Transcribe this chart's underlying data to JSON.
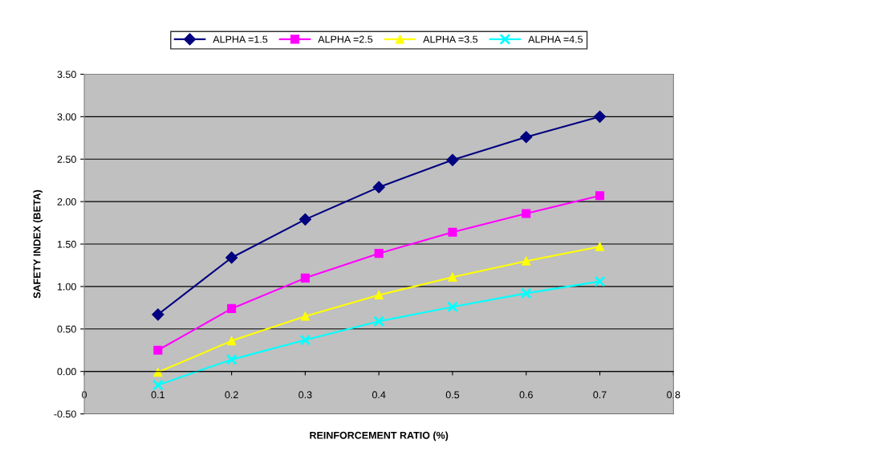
{
  "chart_data": {
    "type": "line",
    "xlabel": "REINFORCEMENT RATIO (%)",
    "ylabel": "SAFETY INDEX (BETA)",
    "x": [
      0.1,
      0.2,
      0.3,
      0.4,
      0.5,
      0.6,
      0.7
    ],
    "series": [
      {
        "name": "ALPHA =1.5",
        "color": "#000080",
        "marker": "diamond",
        "values": [
          0.67,
          1.34,
          1.79,
          2.17,
          2.49,
          2.76,
          3.0
        ]
      },
      {
        "name": "ALPHA =2.5",
        "color": "#ff00ff",
        "marker": "square",
        "values": [
          0.25,
          0.74,
          1.1,
          1.39,
          1.64,
          1.86,
          2.07
        ]
      },
      {
        "name": "ALPHA =3.5",
        "color": "#ffff00",
        "marker": "triangle",
        "values": [
          -0.01,
          0.36,
          0.65,
          0.9,
          1.11,
          1.3,
          1.47
        ]
      },
      {
        "name": "ALPHA =4.5",
        "color": "#00ffff",
        "marker": "cross",
        "values": [
          -0.16,
          0.14,
          0.37,
          0.59,
          0.76,
          0.92,
          1.06
        ]
      }
    ],
    "xlim": [
      0,
      0.8
    ],
    "xticks": [
      {
        "value": 0,
        "label": "0"
      },
      0.1,
      0.2,
      0.3,
      0.4,
      0.5,
      0.6,
      0.7,
      0.8
    ],
    "ylim": [
      -0.5,
      3.5
    ],
    "yticks": [
      {
        "value": -0.5,
        "label": "-0.50"
      },
      {
        "value": 0,
        "label": "0.00"
      },
      {
        "value": 0.5,
        "label": "0.50"
      },
      {
        "value": 1,
        "label": "1.00"
      },
      {
        "value": 1.5,
        "label": "1.50"
      },
      {
        "value": 2,
        "label": "2.00"
      },
      {
        "value": 2.5,
        "label": "2.50"
      },
      {
        "value": 3,
        "label": "3.00"
      },
      {
        "value": 3.5,
        "label": "3.50"
      }
    ],
    "grid": "y",
    "legend": "top",
    "line_style": "solid"
  }
}
